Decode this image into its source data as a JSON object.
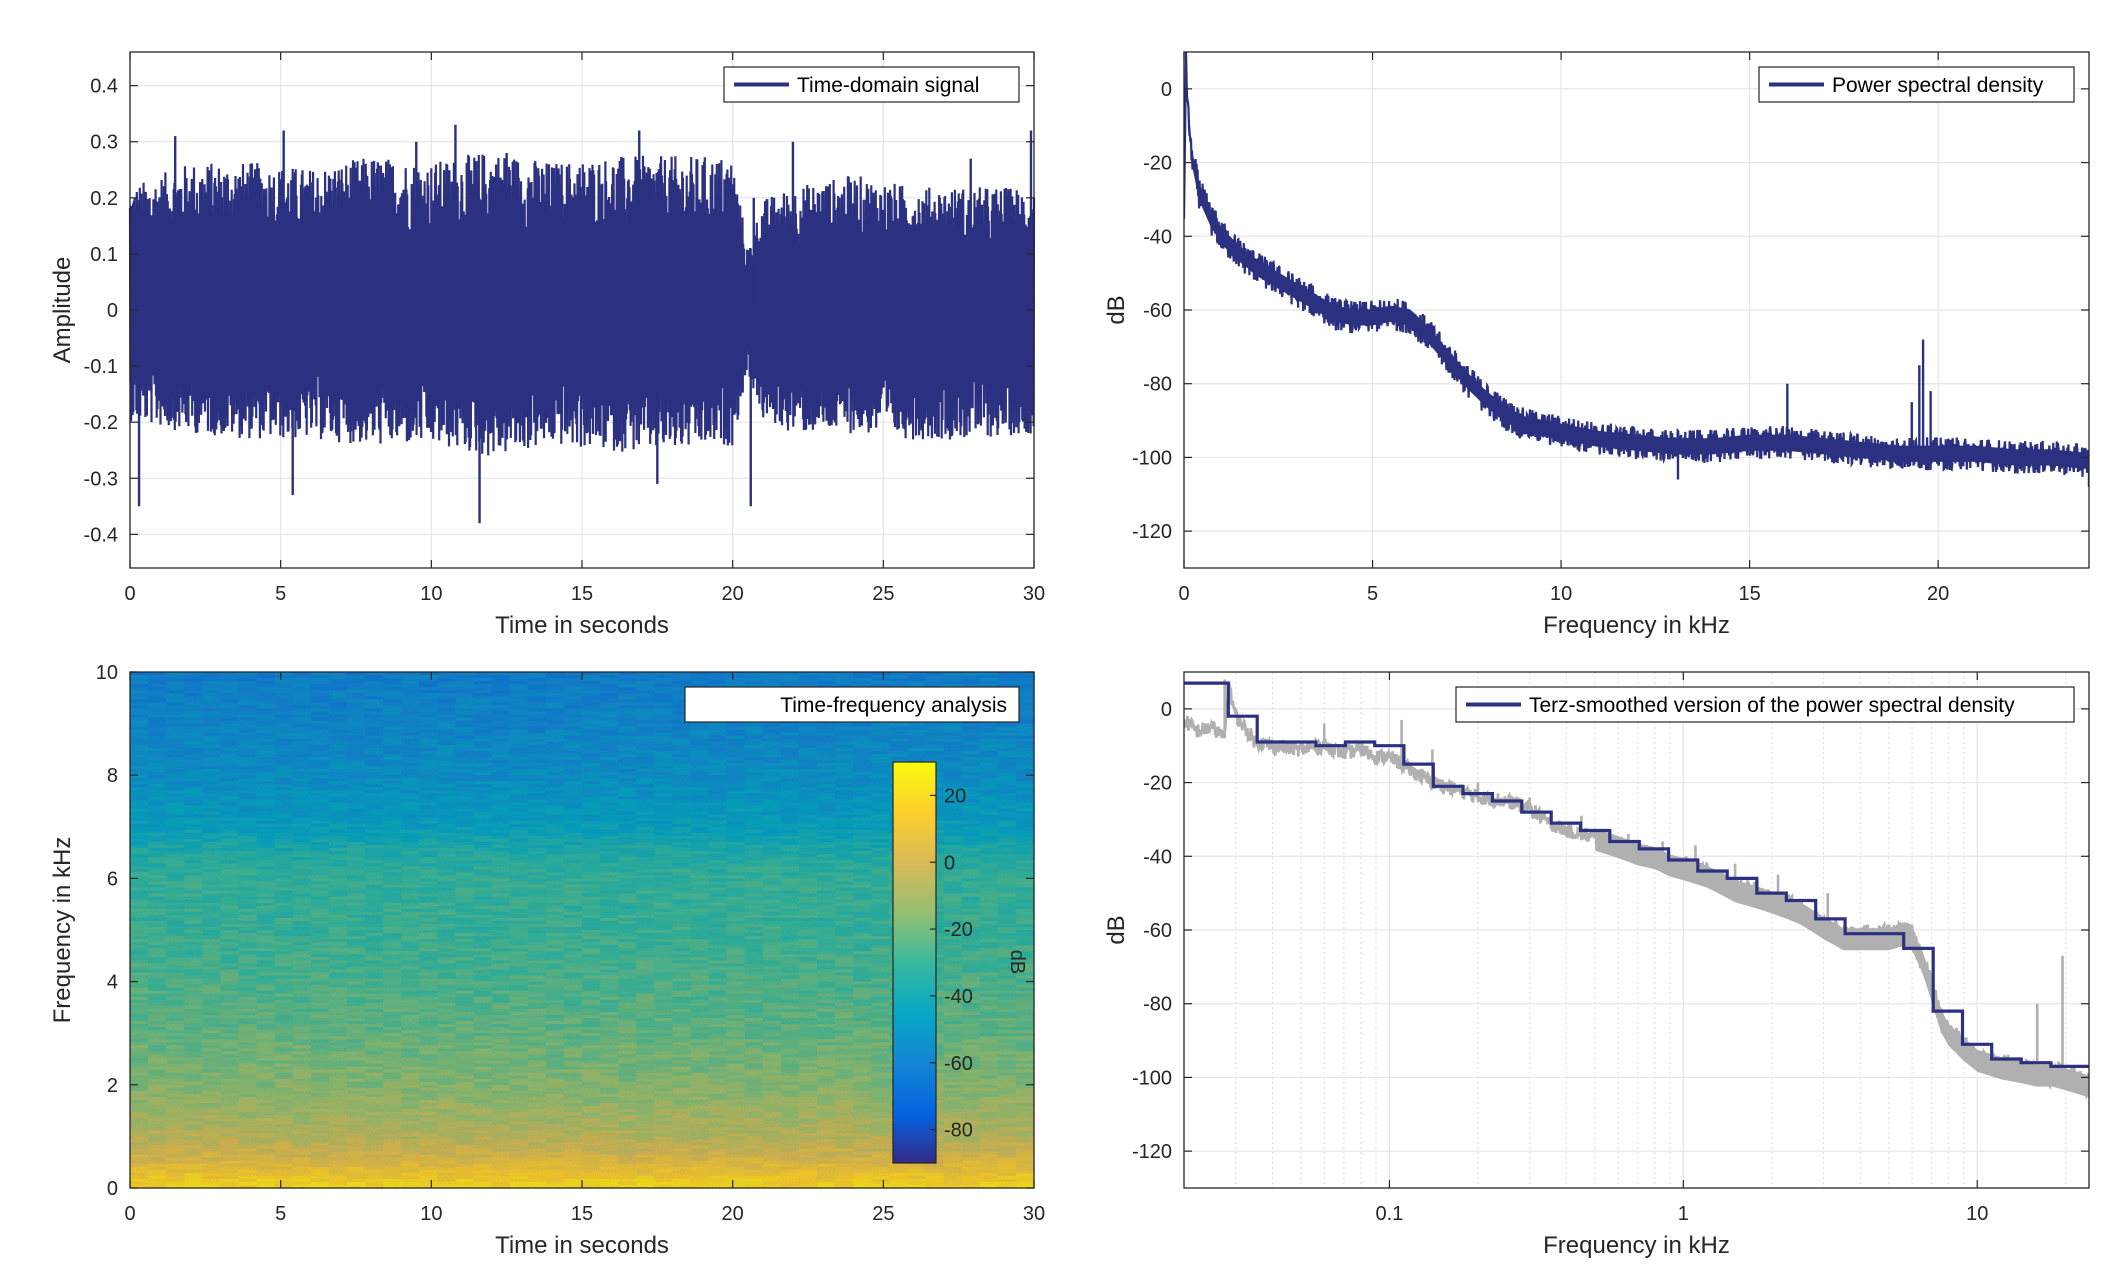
{
  "chart_data": [
    {
      "type": "line",
      "legend": "Time-domain signal",
      "legend_position": "top-right",
      "xlabel": "Time in seconds",
      "ylabel": "Amplitude",
      "xlim": [
        0,
        30
      ],
      "ylim": [
        -0.46,
        0.46
      ],
      "xticks": [
        0,
        5,
        10,
        15,
        20,
        25,
        30
      ],
      "yticks": [
        -0.4,
        -0.3,
        -0.2,
        -0.1,
        0,
        0.1,
        0.2,
        0.3,
        0.4
      ],
      "grid": true,
      "color": "#2b3180",
      "envelope": {
        "t": [
          0,
          2,
          4,
          6,
          8,
          10,
          12,
          14,
          16,
          18,
          20,
          20.5,
          21,
          22,
          24,
          26,
          28,
          30
        ],
        "amplitude_upper": [
          0.2,
          0.24,
          0.24,
          0.23,
          0.25,
          0.24,
          0.26,
          0.24,
          0.25,
          0.25,
          0.25,
          0.1,
          0.18,
          0.2,
          0.22,
          0.2,
          0.2,
          0.2
        ],
        "amplitude_lower": [
          -0.18,
          -0.2,
          -0.21,
          -0.21,
          -0.22,
          -0.22,
          -0.24,
          -0.22,
          -0.23,
          -0.23,
          -0.22,
          -0.1,
          -0.18,
          -0.2,
          -0.2,
          -0.21,
          -0.21,
          -0.2
        ]
      },
      "peaks": [
        [
          0.3,
          -0.35
        ],
        [
          1.5,
          0.31
        ],
        [
          5.1,
          0.32
        ],
        [
          5.4,
          -0.33
        ],
        [
          9.5,
          0.3
        ],
        [
          10.8,
          0.33
        ],
        [
          11.6,
          -0.38
        ],
        [
          12.5,
          0.28
        ],
        [
          16.9,
          0.32
        ],
        [
          17.5,
          -0.31
        ],
        [
          20.6,
          -0.35
        ],
        [
          20.7,
          0.2
        ],
        [
          22.0,
          0.3
        ],
        [
          27.9,
          0.27
        ],
        [
          29.9,
          0.32
        ]
      ]
    },
    {
      "type": "line",
      "legend": "Power spectral density",
      "legend_position": "top-right",
      "xlabel": "Frequency in kHz",
      "ylabel": "dB",
      "xlim": [
        0,
        24
      ],
      "ylim": [
        -130,
        10
      ],
      "xticks": [
        0,
        5,
        10,
        15,
        20
      ],
      "yticks": [
        -120,
        -100,
        -80,
        -60,
        -40,
        -20,
        0
      ],
      "grid": true,
      "color": "#2b3180",
      "x": [
        0,
        0.05,
        0.1,
        0.2,
        0.4,
        0.7,
        1.0,
        1.5,
        2.0,
        2.5,
        3.0,
        3.5,
        4.0,
        4.5,
        5.0,
        5.5,
        6.0,
        6.5,
        7.0,
        7.5,
        8.0,
        8.5,
        9.0,
        9.5,
        10.0,
        11.0,
        12.0,
        13.0,
        14.0,
        15.0,
        16.0,
        17.0,
        18.0,
        19.0,
        20.0,
        21.0,
        22.0,
        23.0,
        24.0
      ],
      "y": [
        -35,
        8,
        -5,
        -18,
        -28,
        -35,
        -40,
        -45,
        -49,
        -52,
        -55,
        -58,
        -61,
        -62,
        -62,
        -61,
        -62,
        -67,
        -73,
        -79,
        -84,
        -88,
        -91,
        -92,
        -93,
        -95,
        -96,
        -97,
        -97,
        -96,
        -96,
        -97,
        -98,
        -99,
        -99,
        -99,
        -100,
        -100,
        -101
      ],
      "spikes": [
        [
          16.0,
          -80
        ],
        [
          19.3,
          -85
        ],
        [
          19.5,
          -75
        ],
        [
          19.6,
          -68
        ],
        [
          19.8,
          -82
        ],
        [
          13.1,
          -106
        ],
        [
          24.0,
          -108
        ]
      ]
    },
    {
      "type": "heatmap",
      "legend": "Time-frequency analysis",
      "legend_position": "top-right",
      "xlabel": "Time in seconds",
      "ylabel": "Frequency in kHz",
      "xlim": [
        0,
        30
      ],
      "ylim": [
        0,
        10
      ],
      "xticks": [
        0,
        5,
        10,
        15,
        20,
        25,
        30
      ],
      "yticks": [
        0,
        2,
        4,
        6,
        8,
        10
      ],
      "colorbar": {
        "label": "dB",
        "range": [
          -90,
          30
        ],
        "ticks": [
          -80,
          -60,
          -40,
          -20,
          0,
          20
        ],
        "colormap": "parula"
      },
      "freq_profile": {
        "f": [
          0,
          0.3,
          0.6,
          1.0,
          2.0,
          3.0,
          4.0,
          5.0,
          6.0,
          6.5,
          7.0,
          8.0,
          9.0,
          10.0
        ],
        "level_db": [
          22,
          12,
          2,
          -6,
          -16,
          -22,
          -26,
          -30,
          -31,
          -36,
          -45,
          -53,
          -57,
          -60
        ]
      }
    },
    {
      "type": "line",
      "legend": "Terz-smoothed version of the power spectral density",
      "legend_position": "top-right",
      "xlabel": "Frequency in kHz",
      "ylabel": "dB",
      "xscale": "log",
      "xlim": [
        0.02,
        24
      ],
      "ylim": [
        -130,
        10
      ],
      "xticks": [
        0.1,
        1,
        10
      ],
      "xtick_labels": [
        "0.1",
        "1",
        "10"
      ],
      "yticks": [
        -120,
        -100,
        -80,
        -60,
        -40,
        -20,
        0
      ],
      "grid": true,
      "series": [
        {
          "name": "Terz-smoothed version of the power spectral density",
          "color": "#2b3180",
          "step_edges": [
            0.02,
            0.0283,
            0.0355,
            0.0447,
            0.0562,
            0.0708,
            0.0891,
            0.112,
            0.141,
            0.178,
            0.224,
            0.282,
            0.355,
            0.447,
            0.562,
            0.708,
            0.891,
            1.12,
            1.41,
            1.78,
            2.24,
            2.82,
            3.55,
            4.47,
            5.62,
            7.08,
            8.91,
            11.2,
            14.1,
            17.8,
            24
          ],
          "step_values": [
            7,
            -2,
            -9,
            -9,
            -10,
            -9,
            -10,
            -15,
            -21,
            -23,
            -25,
            -28,
            -31,
            -33,
            -36,
            -38,
            -41,
            -44,
            -46,
            -50,
            -52,
            -57,
            -61,
            -61,
            -65,
            -82,
            -91,
            -95,
            -96,
            -97
          ]
        },
        {
          "name": "raw",
          "color": "#b0b0b0",
          "x": [
            0.02,
            0.022,
            0.025,
            0.0275,
            0.0283,
            0.03,
            0.035,
            0.04,
            0.05,
            0.06,
            0.07,
            0.08,
            0.09,
            0.1,
            0.12,
            0.14,
            0.17,
            0.2,
            0.25,
            0.3,
            0.35,
            0.4,
            0.5,
            0.6,
            0.7,
            0.8,
            0.9,
            1.0,
            1.2,
            1.5,
            2.0,
            2.5,
            3.0,
            3.5,
            4.0,
            5.0,
            5.5,
            6.0,
            6.5,
            7.0,
            7.5,
            8.0,
            9.0,
            10.0,
            12.0,
            14.0,
            16.0,
            18.0,
            20.0,
            22.0,
            24.0
          ],
          "y": [
            -3,
            -6,
            -5,
            -8,
            7,
            -2,
            -9,
            -10,
            -11,
            -10,
            -12,
            -11,
            -13,
            -13,
            -17,
            -20,
            -22,
            -24,
            -25,
            -27,
            -31,
            -33,
            -35,
            -37,
            -39,
            -40,
            -42,
            -43,
            -45,
            -49,
            -52,
            -55,
            -59,
            -62,
            -62,
            -62,
            -61,
            -62,
            -68,
            -76,
            -84,
            -88,
            -92,
            -95,
            -97,
            -98,
            -99,
            -99,
            -100,
            -101,
            -102
          ],
          "spikes": [
            [
              0.0275,
              8
            ],
            [
              0.0283,
              6
            ],
            [
              0.06,
              -4
            ],
            [
              0.11,
              -3
            ],
            [
              0.14,
              -11
            ],
            [
              0.2,
              -20
            ],
            [
              0.3,
              -24
            ],
            [
              0.45,
              -29
            ],
            [
              0.65,
              -34
            ],
            [
              0.85,
              -36
            ],
            [
              1.1,
              -37
            ],
            [
              1.5,
              -42
            ],
            [
              2.1,
              -45
            ],
            [
              3.1,
              -50
            ],
            [
              16.0,
              -80
            ],
            [
              19.5,
              -67
            ]
          ]
        }
      ]
    }
  ]
}
